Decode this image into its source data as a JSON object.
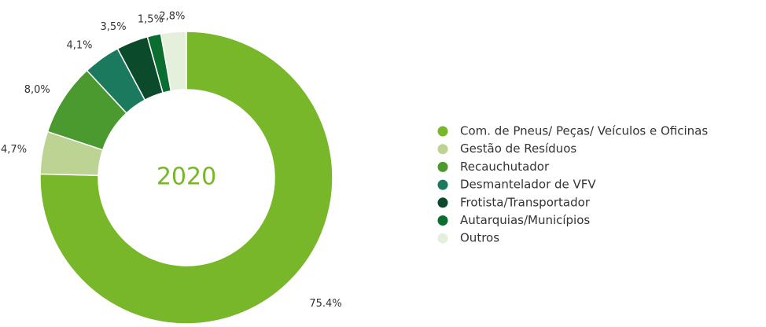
{
  "chart_data": {
    "type": "donut",
    "center_label": "2020",
    "categories": [
      "Com. de Pneus/ Peças/ Veículos e Oficinas",
      "Gestão de Resíduos",
      "Recauchutador",
      "Desmantelador de VFV",
      "Frotista/Transportador",
      "Autarquias/Municípios",
      "Outros"
    ],
    "values": [
      75.4,
      4.7,
      8.0,
      4.1,
      3.5,
      1.5,
      2.8
    ],
    "value_labels": [
      "75.4%",
      "4,7%",
      "8,0%",
      "4,1%",
      "3,5%",
      "1,5%",
      "2,8%"
    ],
    "colors": [
      "#78b72a",
      "#bdd393",
      "#4a9a30",
      "#1b7a5e",
      "#0b4a2a",
      "#0a6e30",
      "#e5f0dc"
    ],
    "legend": "right"
  }
}
